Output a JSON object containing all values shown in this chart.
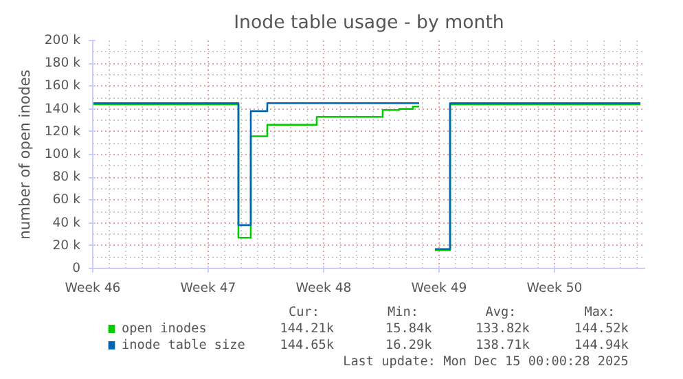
{
  "chart_data": {
    "type": "step",
    "title": "Inode table usage - by month",
    "ylabel": "number of open inodes",
    "xlim": [
      "2025-11-10",
      "2025-12-13T12:00"
    ],
    "xticks": [
      {
        "value": "2025-11-10",
        "label": "Week 46"
      },
      {
        "value": "2025-11-17",
        "label": "Week 47"
      },
      {
        "value": "2025-11-24",
        "label": "Week 48"
      },
      {
        "value": "2025-12-01",
        "label": "Week 49"
      },
      {
        "value": "2025-12-08",
        "label": "Week 50"
      }
    ],
    "ylim": [
      0,
      200000
    ],
    "yticks": [
      {
        "value": 0,
        "label": "0"
      },
      {
        "value": 20000,
        "label": "20 k"
      },
      {
        "value": 40000,
        "label": "40 k"
      },
      {
        "value": 60000,
        "label": "60 k"
      },
      {
        "value": 80000,
        "label": "80 k"
      },
      {
        "value": 100000,
        "label": "100 k"
      },
      {
        "value": 120000,
        "label": "120 k"
      },
      {
        "value": 140000,
        "label": "140 k"
      },
      {
        "value": 160000,
        "label": "160 k"
      },
      {
        "value": 180000,
        "label": "180 k"
      },
      {
        "value": 200000,
        "label": "200 k"
      }
    ],
    "grid": true,
    "legend": "bottom left",
    "series": [
      {
        "name": "open inodes",
        "color": "#00cc00",
        "x": [
          "2025-11-10",
          "2025-11-18T16:00",
          "2025-11-18T20:00",
          "2025-11-19T10:00",
          "2025-11-19T14:00",
          "2025-11-20T12:00",
          "2025-11-20T14:00",
          "2025-11-23T12:00",
          "2025-11-23T14:00",
          "2025-11-27T12:00",
          "2025-11-27T14:00",
          "2025-11-28T12:00",
          "2025-11-28T14:00",
          "2025-11-29T07:00",
          "2025-11-29T10:00",
          "2025-11-29T19:00",
          "2025-11-30",
          "2025-11-30T18:00",
          "2025-12-01T10:00",
          "2025-12-01T16:00",
          "2025-12-13T05:00"
        ],
        "values": [
          144000,
          144000,
          27000,
          27000,
          116000,
          116000,
          126000,
          126000,
          133000,
          133000,
          139000,
          139000,
          140000,
          140000,
          142000,
          142000,
          null,
          16000,
          16000,
          144000,
          144000
        ]
      },
      {
        "name": "inode table size",
        "color": "#0066b3",
        "x": [
          "2025-11-10",
          "2025-11-18T16:00",
          "2025-11-18T20:00",
          "2025-11-19T10:00",
          "2025-11-19T14:00",
          "2025-11-20T12:00",
          "2025-11-20T14:00",
          "2025-11-29T19:00",
          "2025-11-30",
          "2025-11-30T18:00",
          "2025-12-01T10:00",
          "2025-12-01T16:00",
          "2025-12-13T05:00"
        ],
        "values": [
          145000,
          145000,
          38000,
          38000,
          138000,
          138000,
          145000,
          145000,
          null,
          17000,
          17000,
          145000,
          145000
        ]
      }
    ],
    "annotations": [
      "Cur:",
      "Min:",
      "Avg:",
      "Max:",
      "144.21k",
      "15.84k",
      "133.82k",
      "144.52k",
      "144.65k",
      "16.29k",
      "138.71k",
      "144.94k",
      "Last update: Mon Dec 15 00:00:28 2025"
    ]
  }
}
